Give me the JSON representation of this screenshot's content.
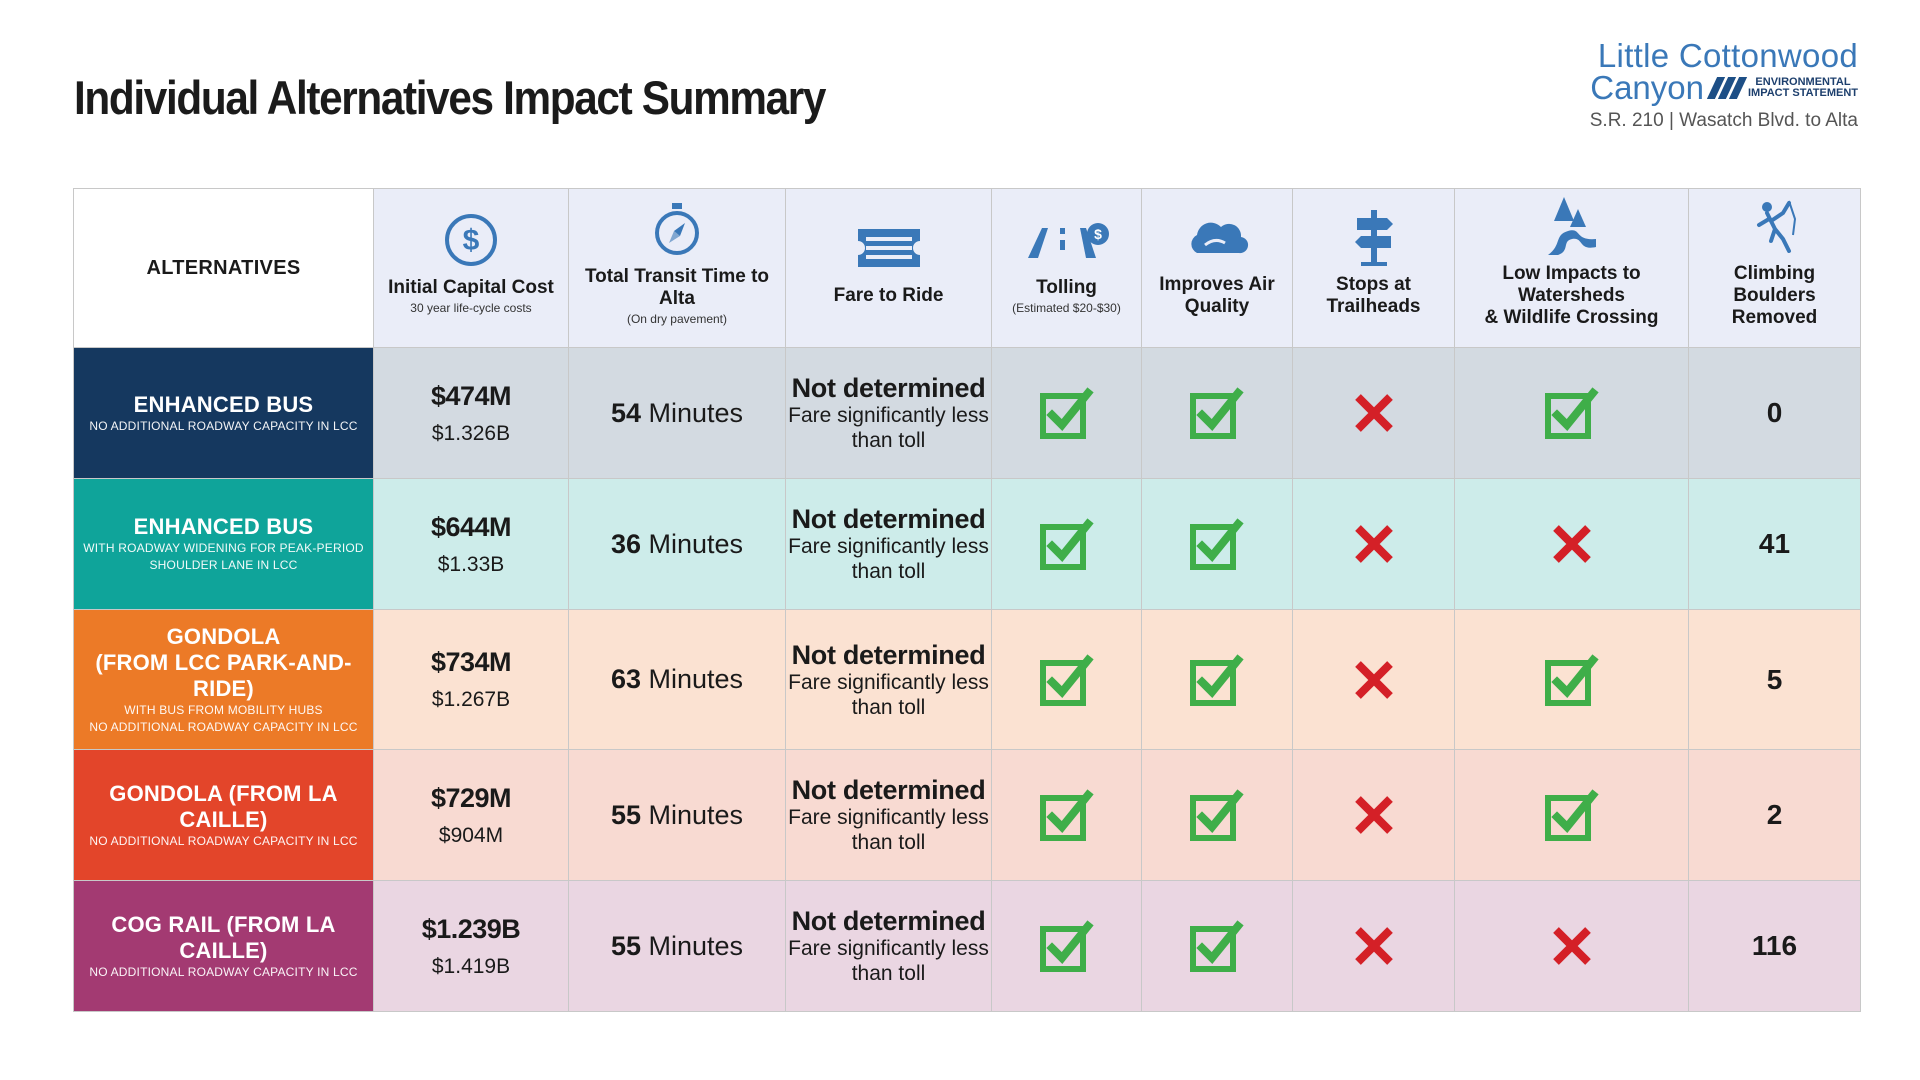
{
  "title": "Individual Alternatives Impact Summary",
  "logo": {
    "line1": "Little Cottonwood",
    "line2": "Canyon",
    "eis_line1": "ENVIRONMENTAL",
    "eis_line2": "IMPACT STATEMENT",
    "subtitle": "S.R. 210 | Wasatch Blvd. to Alta"
  },
  "colors": {
    "check": "#3fae49",
    "cross": "#d42027",
    "icon": "#3a78b8"
  },
  "columns": {
    "alternatives": "ALTERNATIVES",
    "cost": {
      "label": "Initial Capital Cost",
      "sub": "30 year life-cycle costs",
      "icon": "dollar-icon"
    },
    "transit": {
      "label": "Total Transit Time to Alta",
      "sub": "(On dry pavement)",
      "icon": "compass-icon"
    },
    "fare": {
      "label": "Fare to Ride",
      "icon": "ticket-icon"
    },
    "tolling": {
      "label": "Tolling",
      "sub": "(Estimated $20-$30)",
      "icon": "toll-road-icon"
    },
    "air": {
      "label1": "Improves Air",
      "label2": "Quality",
      "icon": "cloud-icon"
    },
    "stops": {
      "label1": "Stops at",
      "label2": "Trailheads",
      "icon": "signpost-icon"
    },
    "water": {
      "label1": "Low Impacts to Watersheds",
      "label2": "& Wildlife Crossing",
      "icon": "river-icon"
    },
    "boulders": {
      "label1": "Climbing Boulders",
      "label2": "Removed",
      "icon": "climber-icon"
    }
  },
  "rows": [
    {
      "name1": "ENHANCED BUS",
      "name2": "",
      "note1": "NO ADDITIONAL ROADWAY CAPACITY IN LCC",
      "note2": "",
      "color": "#15385f",
      "cost_main": "$474M",
      "cost_lifecycle": "$1.326B",
      "time_num": "54",
      "time_unit": "Minutes",
      "fare_main": "Not determined",
      "fare_sub1": "Fare significantly less",
      "fare_sub2": "than toll",
      "tolling": true,
      "air": true,
      "stops": false,
      "water": true,
      "boulders": "0"
    },
    {
      "name1": "ENHANCED BUS",
      "name2": "",
      "note1": "WITH ROADWAY WIDENING FOR PEAK-PERIOD",
      "note2": "SHOULDER LANE IN LCC",
      "color": "#0fa49a",
      "cost_main": "$644M",
      "cost_lifecycle": "$1.33B",
      "time_num": "36",
      "time_unit": "Minutes",
      "fare_main": "Not determined",
      "fare_sub1": "Fare significantly less",
      "fare_sub2": "than toll",
      "tolling": true,
      "air": true,
      "stops": false,
      "water": false,
      "boulders": "41"
    },
    {
      "name1": "GONDOLA",
      "name2": "(FROM LCC PARK-AND-RIDE)",
      "note1": "WITH BUS FROM MOBILITY HUBS",
      "note2": "NO ADDITIONAL ROADWAY CAPACITY IN LCC",
      "color": "#ec7a27",
      "cost_main": "$734M",
      "cost_lifecycle": "$1.267B",
      "time_num": "63",
      "time_unit": "Minutes",
      "fare_main": "Not determined",
      "fare_sub1": "Fare significantly less",
      "fare_sub2": "than toll",
      "tolling": true,
      "air": true,
      "stops": false,
      "water": true,
      "boulders": "5"
    },
    {
      "name1": "GONDOLA (FROM LA CAILLE)",
      "name2": "",
      "note1": "NO ADDITIONAL ROADWAY CAPACITY IN LCC",
      "note2": "",
      "color": "#e3452a",
      "cost_main": "$729M",
      "cost_lifecycle": "$904M",
      "time_num": "55",
      "time_unit": "Minutes",
      "fare_main": "Not determined",
      "fare_sub1": "Fare significantly less",
      "fare_sub2": "than toll",
      "tolling": true,
      "air": true,
      "stops": false,
      "water": true,
      "boulders": "2"
    },
    {
      "name1": "COG RAIL (FROM LA CAILLE)",
      "name2": "",
      "note1": "NO ADDITIONAL ROADWAY CAPACITY IN LCC",
      "note2": "",
      "color": "#a33a72",
      "cost_main": "$1.239B",
      "cost_lifecycle": "$1.419B",
      "time_num": "55",
      "time_unit": "Minutes",
      "fare_main": "Not determined",
      "fare_sub1": "Fare significantly less",
      "fare_sub2": "than toll",
      "tolling": true,
      "air": true,
      "stops": false,
      "water": false,
      "boulders": "116"
    }
  ]
}
